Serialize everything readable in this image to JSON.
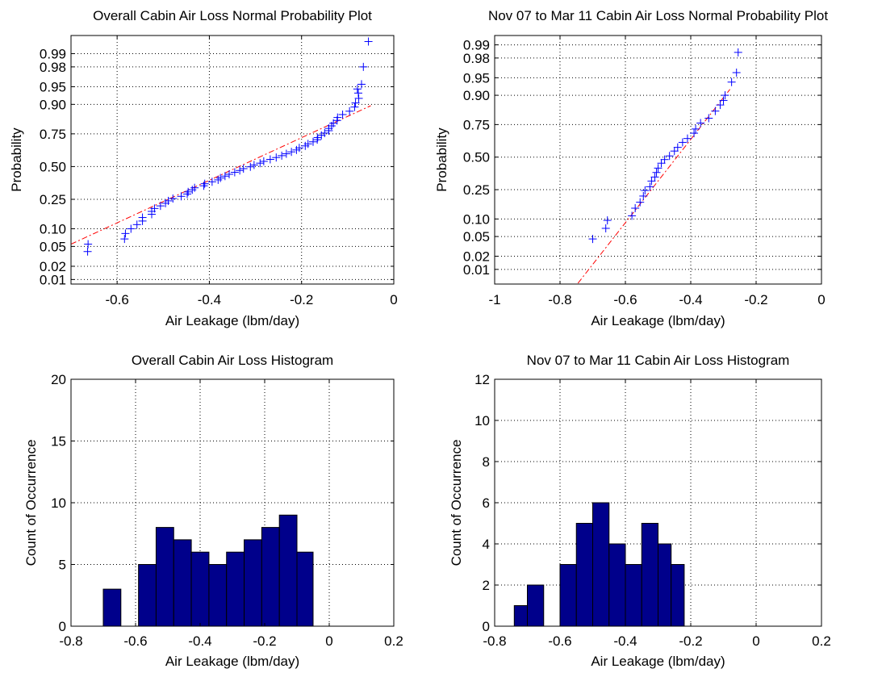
{
  "chart_data": [
    {
      "type": "probability_plot",
      "title": "Overall Cabin Air Loss Normal Probability Plot",
      "xlabel": "Air Leakage (lbm/day)",
      "ylabel": "Probability",
      "xlim": [
        -0.7,
        0
      ],
      "xticks": [
        -0.6,
        -0.4,
        -0.2,
        0
      ],
      "xtick_labels": [
        "-0.6",
        "-0.4",
        "-0.2",
        "0"
      ],
      "yticks": [
        0.01,
        0.02,
        0.05,
        0.1,
        0.25,
        0.5,
        0.75,
        0.9,
        0.95,
        0.98,
        0.99
      ],
      "ytick_labels": [
        "0.01",
        "0.02",
        "0.05",
        "0.10",
        "0.25",
        "0.50",
        "0.75",
        "0.90",
        "0.95",
        "0.98",
        "0.99"
      ],
      "y_scale": "normal-probability",
      "grid": true,
      "marker": "+",
      "marker_color": "#0000ff",
      "fit_line_color": "#ff0000",
      "fit_line": {
        "style": "dash-dot",
        "x": [
          -0.7,
          -0.05
        ],
        "p": [
          0.055,
          0.895
        ]
      },
      "points": [
        [
          -0.664,
          0.04
        ],
        [
          -0.663,
          0.055
        ],
        [
          -0.584,
          0.068
        ],
        [
          -0.582,
          0.084
        ],
        [
          -0.57,
          0.1
        ],
        [
          -0.557,
          0.116
        ],
        [
          -0.545,
          0.131
        ],
        [
          -0.545,
          0.147
        ],
        [
          -0.525,
          0.163
        ],
        [
          -0.525,
          0.178
        ],
        [
          -0.519,
          0.194
        ],
        [
          -0.506,
          0.209
        ],
        [
          -0.495,
          0.225
        ],
        [
          -0.489,
          0.24
        ],
        [
          -0.479,
          0.255
        ],
        [
          -0.461,
          0.27
        ],
        [
          -0.448,
          0.286
        ],
        [
          -0.446,
          0.301
        ],
        [
          -0.437,
          0.316
        ],
        [
          -0.432,
          0.331
        ],
        [
          -0.412,
          0.346
        ],
        [
          -0.41,
          0.362
        ],
        [
          -0.394,
          0.377
        ],
        [
          -0.381,
          0.392
        ],
        [
          -0.376,
          0.407
        ],
        [
          -0.366,
          0.422
        ],
        [
          -0.357,
          0.437
        ],
        [
          -0.345,
          0.453
        ],
        [
          -0.334,
          0.468
        ],
        [
          -0.326,
          0.483
        ],
        [
          -0.311,
          0.498
        ],
        [
          -0.303,
          0.513
        ],
        [
          -0.29,
          0.528
        ],
        [
          -0.282,
          0.543
        ],
        [
          -0.268,
          0.559
        ],
        [
          -0.255,
          0.574
        ],
        [
          -0.243,
          0.589
        ],
        [
          -0.233,
          0.604
        ],
        [
          -0.222,
          0.619
        ],
        [
          -0.211,
          0.634
        ],
        [
          -0.205,
          0.65
        ],
        [
          -0.192,
          0.665
        ],
        [
          -0.186,
          0.68
        ],
        [
          -0.175,
          0.695
        ],
        [
          -0.166,
          0.71
        ],
        [
          -0.165,
          0.725
        ],
        [
          -0.157,
          0.74
        ],
        [
          -0.15,
          0.755
        ],
        [
          -0.141,
          0.77
        ],
        [
          -0.141,
          0.784
        ],
        [
          -0.135,
          0.799
        ],
        [
          -0.131,
          0.814
        ],
        [
          -0.123,
          0.829
        ],
        [
          -0.122,
          0.844
        ],
        [
          -0.111,
          0.858
        ],
        [
          -0.096,
          0.873
        ],
        [
          -0.085,
          0.89
        ],
        [
          -0.083,
          0.905
        ],
        [
          -0.076,
          0.92
        ],
        [
          -0.077,
          0.935
        ],
        [
          -0.079,
          0.945
        ],
        [
          -0.07,
          0.955
        ],
        [
          -0.066,
          0.98
        ],
        [
          -0.055,
          0.995
        ]
      ]
    },
    {
      "type": "probability_plot",
      "title": "Nov 07 to Mar 11 Cabin Air Loss Normal Probability Plot",
      "xlabel": "Air Leakage (lbm/day)",
      "ylabel": "Probability",
      "xlim": [
        -1,
        0
      ],
      "xticks": [
        -1,
        -0.8,
        -0.6,
        -0.4,
        -0.2,
        0
      ],
      "xtick_labels": [
        "-1",
        "-0.8",
        "-0.6",
        "-0.4",
        "-0.2",
        "0"
      ],
      "yticks": [
        0.01,
        0.02,
        0.05,
        0.1,
        0.25,
        0.5,
        0.75,
        0.9,
        0.95,
        0.98,
        0.99
      ],
      "ytick_labels": [
        "0.01",
        "0.02",
        "0.05",
        "0.10",
        "0.25",
        "0.50",
        "0.75",
        "0.90",
        "0.95",
        "0.98",
        "0.99"
      ],
      "y_scale": "normal-probability",
      "grid": true,
      "marker": "+",
      "marker_color": "#0000ff",
      "fit_line_color": "#ff0000",
      "fit_line": {
        "style": "dash-dot",
        "x": [
          -0.745,
          -0.28
        ],
        "p": [
          0.0045,
          0.92
        ]
      },
      "points": [
        [
          -0.7,
          0.045
        ],
        [
          -0.66,
          0.07
        ],
        [
          -0.655,
          0.095
        ],
        [
          -0.58,
          0.112
        ],
        [
          -0.57,
          0.145
        ],
        [
          -0.555,
          0.175
        ],
        [
          -0.545,
          0.21
        ],
        [
          -0.54,
          0.245
        ],
        [
          -0.525,
          0.27
        ],
        [
          -0.52,
          0.31
        ],
        [
          -0.51,
          0.34
        ],
        [
          -0.505,
          0.375
        ],
        [
          -0.5,
          0.41
        ],
        [
          -0.49,
          0.45
        ],
        [
          -0.48,
          0.48
        ],
        [
          -0.465,
          0.51
        ],
        [
          -0.45,
          0.55
        ],
        [
          -0.44,
          0.58
        ],
        [
          -0.425,
          0.62
        ],
        [
          -0.41,
          0.65
        ],
        [
          -0.39,
          0.69
        ],
        [
          -0.385,
          0.72
        ],
        [
          -0.37,
          0.76
        ],
        [
          -0.345,
          0.79
        ],
        [
          -0.325,
          0.83
        ],
        [
          -0.31,
          0.86
        ],
        [
          -0.3,
          0.88
        ],
        [
          -0.295,
          0.9
        ],
        [
          -0.275,
          0.94
        ],
        [
          -0.26,
          0.96
        ],
        [
          -0.255,
          0.985
        ]
      ]
    },
    {
      "type": "bar",
      "title": "Overall Cabin Air Loss Histogram",
      "xlabel": "Air Leakage (lbm/day)",
      "ylabel": "Count of Occurrence",
      "xlim": [
        -0.8,
        0.2
      ],
      "ylim": [
        0,
        20
      ],
      "xticks": [
        -0.8,
        -0.6,
        -0.4,
        -0.2,
        0,
        0.2
      ],
      "xtick_labels": [
        "-0.8",
        "-0.6",
        "-0.4",
        "-0.2",
        "0",
        "0.2"
      ],
      "yticks": [
        0,
        5,
        10,
        15,
        20
      ],
      "ytick_labels": [
        "0",
        "5",
        "10",
        "15",
        "20"
      ],
      "grid": true,
      "bar_color": "#00008b",
      "bins": [
        {
          "left": -0.7,
          "right": -0.6455,
          "value": 3
        },
        {
          "left": -0.6455,
          "right": -0.5909,
          "value": 0
        },
        {
          "left": -0.5909,
          "right": -0.5364,
          "value": 5
        },
        {
          "left": -0.5364,
          "right": -0.4818,
          "value": 8
        },
        {
          "left": -0.4818,
          "right": -0.4273,
          "value": 7
        },
        {
          "left": -0.4273,
          "right": -0.3727,
          "value": 6
        },
        {
          "left": -0.3727,
          "right": -0.3182,
          "value": 5
        },
        {
          "left": -0.3182,
          "right": -0.2636,
          "value": 6
        },
        {
          "left": -0.2636,
          "right": -0.2091,
          "value": 7
        },
        {
          "left": -0.2091,
          "right": -0.1545,
          "value": 8
        },
        {
          "left": -0.1545,
          "right": -0.1,
          "value": 9
        },
        {
          "left": -0.1,
          "right": -0.05,
          "value": 6
        }
      ]
    },
    {
      "type": "bar",
      "title": "Nov 07 to Mar 11 Cabin Air Loss Histogram",
      "xlabel": "Air Leakage (lbm/day)",
      "ylabel": "Count of Occurrence",
      "xlim": [
        -0.8,
        0.2
      ],
      "ylim": [
        0,
        12
      ],
      "xticks": [
        -0.8,
        -0.6,
        -0.4,
        -0.2,
        0,
        0.2
      ],
      "xtick_labels": [
        "-0.8",
        "-0.6",
        "-0.4",
        "-0.2",
        "0",
        "0.2"
      ],
      "yticks": [
        0,
        2,
        4,
        6,
        8,
        10,
        12
      ],
      "ytick_labels": [
        "0",
        "2",
        "4",
        "6",
        "8",
        "10",
        "12"
      ],
      "grid": true,
      "bar_color": "#00008b",
      "bins": [
        {
          "left": -0.74,
          "right": -0.7,
          "value": 1
        },
        {
          "left": -0.7,
          "right": -0.65,
          "value": 2
        },
        {
          "left": -0.65,
          "right": -0.6,
          "value": 0
        },
        {
          "left": -0.6,
          "right": -0.55,
          "value": 3
        },
        {
          "left": -0.55,
          "right": -0.5,
          "value": 5
        },
        {
          "left": -0.5,
          "right": -0.45,
          "value": 6
        },
        {
          "left": -0.45,
          "right": -0.4,
          "value": 4
        },
        {
          "left": -0.4,
          "right": -0.35,
          "value": 3
        },
        {
          "left": -0.35,
          "right": -0.3,
          "value": 5
        },
        {
          "left": -0.3,
          "right": -0.26,
          "value": 4
        },
        {
          "left": -0.26,
          "right": -0.22,
          "value": 3
        }
      ]
    }
  ]
}
